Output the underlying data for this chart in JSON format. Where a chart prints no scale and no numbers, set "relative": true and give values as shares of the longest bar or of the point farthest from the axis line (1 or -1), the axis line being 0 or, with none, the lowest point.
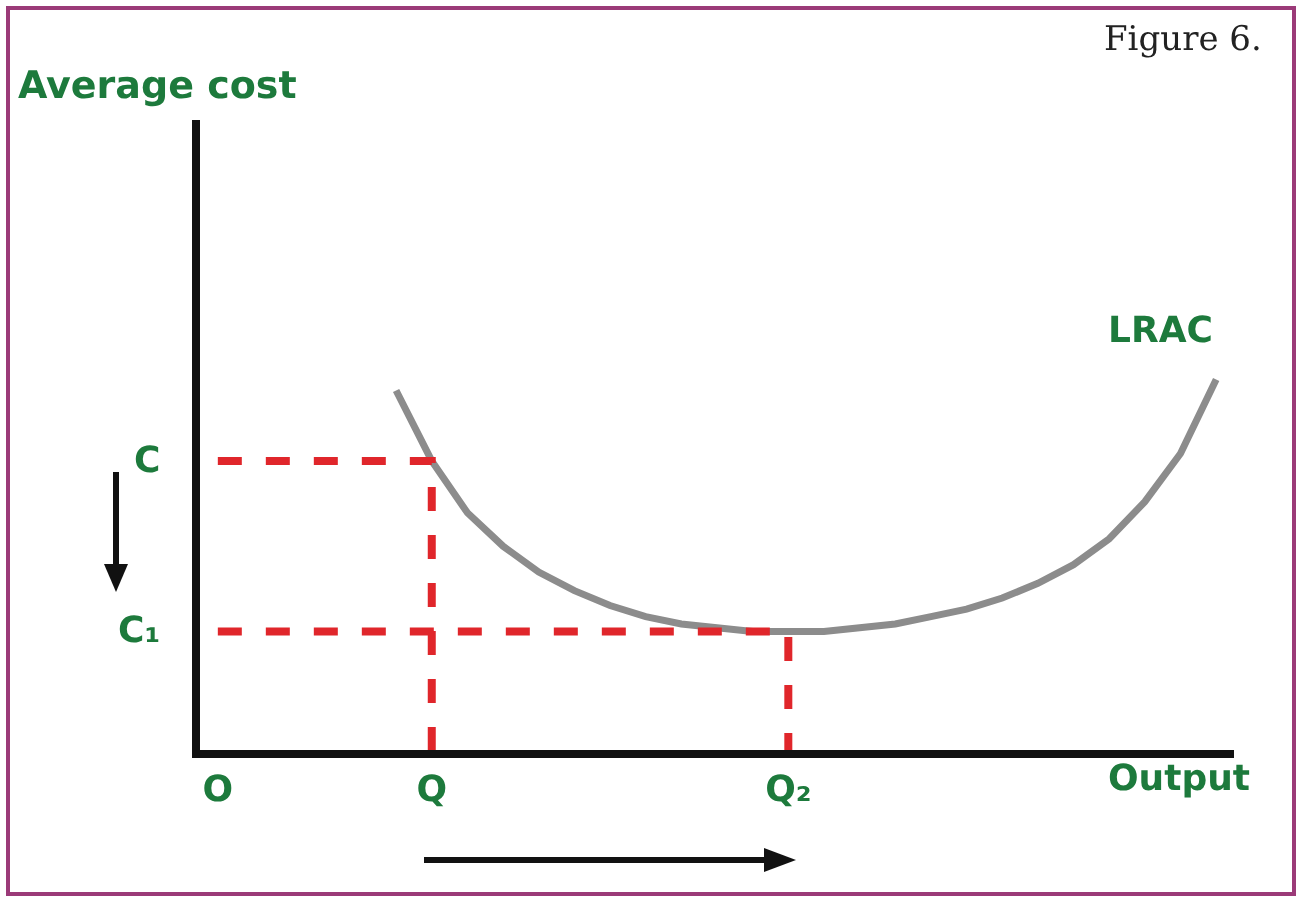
{
  "chart_data": {
    "type": "line",
    "relative": true,
    "xlabel": "Output",
    "categories": [
      "O",
      null,
      null,
      null,
      null,
      null,
      "Q",
      null,
      null,
      null,
      null,
      null,
      null,
      null,
      null,
      null,
      "Q₂",
      null,
      null,
      null,
      null,
      null,
      null,
      null,
      null,
      null,
      null,
      null,
      null
    ],
    "series": [
      {
        "color": "#8c8c8c",
        "values": [
          null,
          null,
          null,
          null,
          null,
          0.97,
          0.78,
          0.64,
          0.55,
          0.48,
          0.43,
          0.39,
          0.36,
          0.34,
          0.33,
          0.32,
          0.32,
          0.32,
          0.33,
          0.34,
          0.36,
          0.38,
          0.41,
          0.45,
          0.5,
          0.57,
          0.67,
          0.8,
          1
        ]
      },
      {
        "type": "line",
        "color": "#e0262b",
        "line_style": "dashed",
        "x": [
          "O",
          "Q",
          "Q"
        ],
        "values": [
          0.78,
          0.78,
          0
        ]
      },
      {
        "type": "line",
        "color": "#e0262b",
        "line_style": "dashed",
        "x": [
          "O",
          "Q₂",
          "Q₂"
        ],
        "values": [
          0.32,
          0.32,
          0
        ]
      }
    ],
    "annotations": [
      "Figure 6.",
      "Average cost",
      "LRAC",
      "C",
      "C₁"
    ],
    "grid": false,
    "marker": "none"
  }
}
